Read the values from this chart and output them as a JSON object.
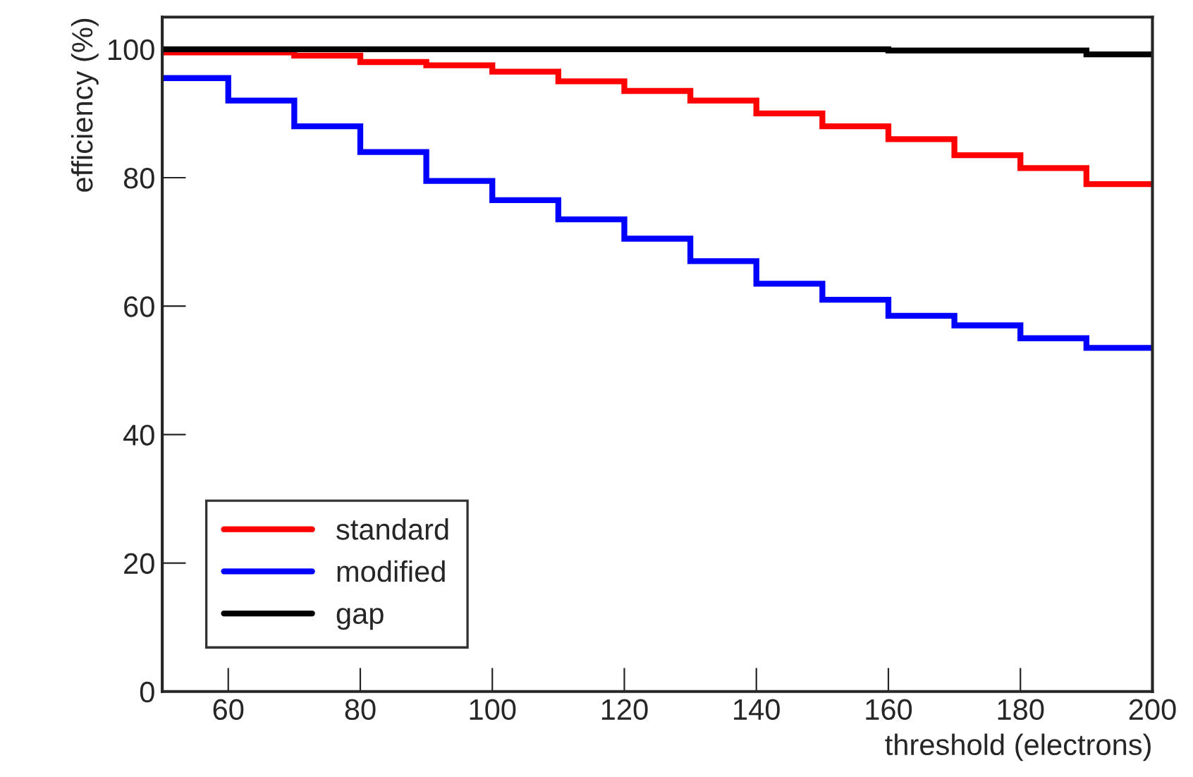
{
  "chart_data": {
    "type": "histogram",
    "xlabel": "threshold (electrons)",
    "ylabel": "efficiency (%)",
    "bins": [
      50,
      60,
      70,
      80,
      90,
      100,
      110,
      120,
      130,
      140,
      150,
      160,
      170,
      180,
      190,
      200
    ],
    "series": [
      {
        "name": "standard",
        "color": "#ff0000",
        "values": [
          99.5,
          99.5,
          99,
          98,
          97.5,
          96.5,
          95,
          93.5,
          92,
          90,
          88,
          86,
          83.5,
          81.5,
          79
        ]
      },
      {
        "name": "modified",
        "color": "#0000ff",
        "values": [
          95.5,
          92,
          88,
          84,
          79.5,
          76.5,
          73.5,
          70.5,
          67,
          63.5,
          61,
          58.5,
          57,
          55,
          53.5
        ]
      },
      {
        "name": "gap",
        "color": "#000000",
        "values": [
          100,
          100,
          100,
          100,
          100,
          100,
          100,
          100,
          100,
          100,
          100,
          99.8,
          99.8,
          99.8,
          99.2
        ]
      }
    ],
    "xlim": [
      50,
      200
    ],
    "xticks": [
      60,
      80,
      100,
      120,
      140,
      160,
      180,
      200
    ],
    "ylim": [
      0,
      105
    ],
    "yticks": [
      0,
      20,
      40,
      60,
      80,
      100
    ],
    "grid": false,
    "legend": "bottom left"
  }
}
